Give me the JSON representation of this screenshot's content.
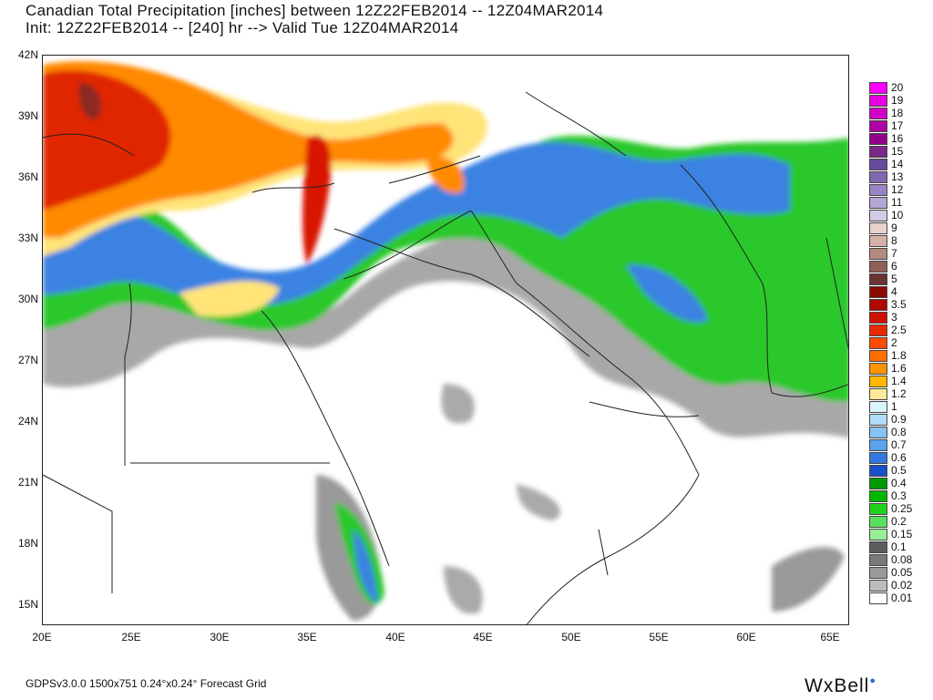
{
  "title": {
    "line1": "Canadian Total Precipitation [inches] between 12Z22FEB2014 -- 12Z04MAR2014",
    "line2": "Init: 12Z22FEB2014 -- [240] hr --> Valid Tue 12Z04MAR2014"
  },
  "lat_labels": [
    "42N",
    "39N",
    "36N",
    "33N",
    "30N",
    "27N",
    "24N",
    "21N",
    "18N",
    "15N"
  ],
  "lon_labels": [
    "20E",
    "25E",
    "30E",
    "35E",
    "40E",
    "45E",
    "50E",
    "55E",
    "60E",
    "65E"
  ],
  "legend": [
    {
      "label": "20",
      "color": "#ff00ff"
    },
    {
      "label": "19",
      "color": "#e800e0"
    },
    {
      "label": "18",
      "color": "#d000c8"
    },
    {
      "label": "17",
      "color": "#b000a8"
    },
    {
      "label": "16",
      "color": "#90008c"
    },
    {
      "label": "15",
      "color": "#7a2a86"
    },
    {
      "label": "14",
      "color": "#6a4a9a"
    },
    {
      "label": "13",
      "color": "#7e68b2"
    },
    {
      "label": "12",
      "color": "#9684c4"
    },
    {
      "label": "11",
      "color": "#b2a6d6"
    },
    {
      "label": "10",
      "color": "#d2cae6"
    },
    {
      "label": "9",
      "color": "#e8d2cc"
    },
    {
      "label": "8",
      "color": "#d6b0a6"
    },
    {
      "label": "7",
      "color": "#b48a80"
    },
    {
      "label": "6",
      "color": "#8e6058"
    },
    {
      "label": "5",
      "color": "#6a3430"
    },
    {
      "label": "4",
      "color": "#8a0a00"
    },
    {
      "label": "3.5",
      "color": "#b00a00"
    },
    {
      "label": "3",
      "color": "#d01000"
    },
    {
      "label": "2.5",
      "color": "#e82a00"
    },
    {
      "label": "2",
      "color": "#ff4a00"
    },
    {
      "label": "1.8",
      "color": "#ff6e00"
    },
    {
      "label": "1.6",
      "color": "#ff9400"
    },
    {
      "label": "1.4",
      "color": "#ffb800"
    },
    {
      "label": "1.2",
      "color": "#ffe898"
    },
    {
      "label": "1",
      "color": "#dcf4ff"
    },
    {
      "label": "0.9",
      "color": "#b0dcfa"
    },
    {
      "label": "0.8",
      "color": "#88c2f2"
    },
    {
      "label": "0.7",
      "color": "#5aa2ea"
    },
    {
      "label": "0.6",
      "color": "#3278de"
    },
    {
      "label": "0.5",
      "color": "#1a50c8"
    },
    {
      "label": "0.4",
      "color": "#009a00"
    },
    {
      "label": "0.3",
      "color": "#00b800"
    },
    {
      "label": "0.25",
      "color": "#1ed21e"
    },
    {
      "label": "0.2",
      "color": "#5ae05a"
    },
    {
      "label": "0.15",
      "color": "#96ee96"
    },
    {
      "label": "0.1",
      "color": "#5c5c5c"
    },
    {
      "label": "0.08",
      "color": "#7a7a7a"
    },
    {
      "label": "0.05",
      "color": "#9a9a9a"
    },
    {
      "label": "0.02",
      "color": "#bcbcbc"
    },
    {
      "label": "0.01",
      "color": "#ffffff"
    }
  ],
  "footer": "GDPSv3.0.0  1500x751  0.24°x0.24° Forecast Grid",
  "brand": {
    "text": "WxBell",
    "dot": "●"
  }
}
